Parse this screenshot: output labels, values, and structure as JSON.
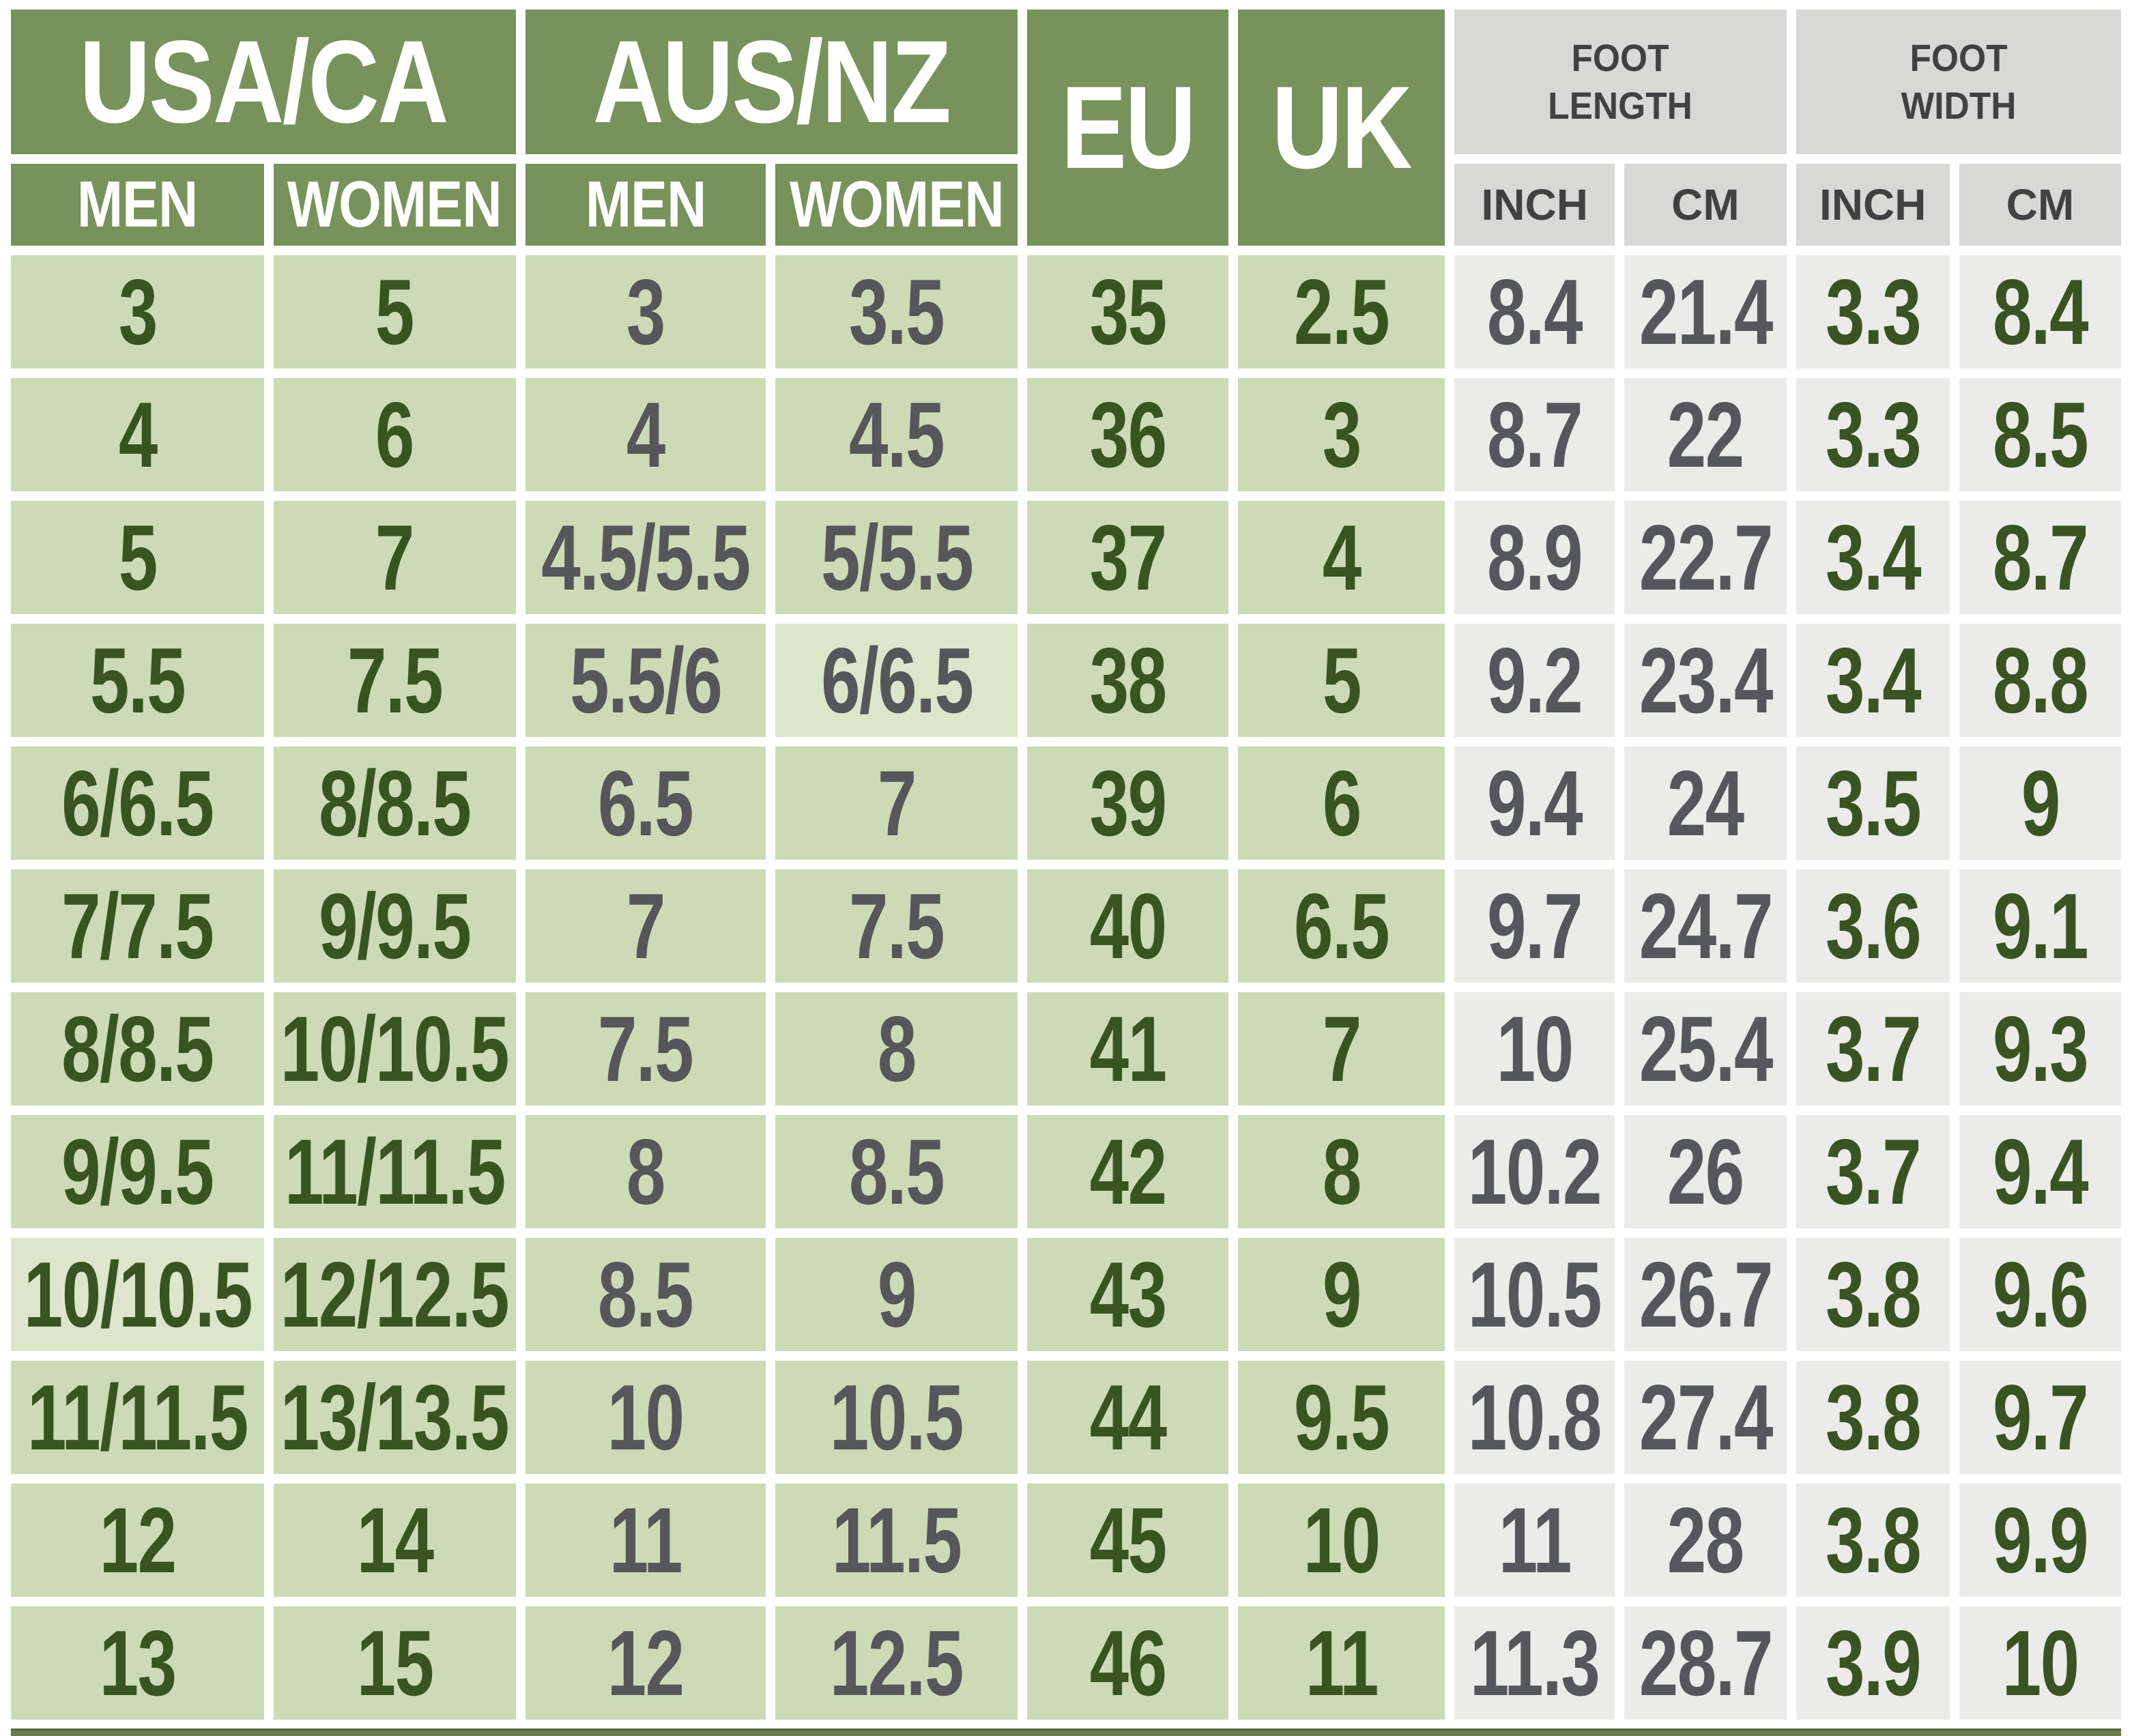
{
  "header": {
    "groups": {
      "usa_ca": "USA/CA",
      "aus_nz": "AUS/NZ",
      "eu": "EU",
      "uk": "UK",
      "foot_length": "FOOT LENGTH",
      "foot_width": "FOOT WIDTH"
    },
    "sub": {
      "men": "MEN",
      "women": "WOMEN",
      "inch": "INCH",
      "cm": "CM"
    }
  },
  "colors": {
    "header-green": "#78925B",
    "cell-green": "#CCDBB5",
    "cell-green-light": "#DCE6CB",
    "header-gray": "#D8D8D6",
    "cell-gray": "#EBEBE9",
    "text-dark-green": "#3A5322",
    "text-gray": "#55575A",
    "text-header-gray": "#414143",
    "accent-bar": "#6B7C4F",
    "background": "#FFFFFF"
  },
  "chart_data": {
    "type": "table",
    "column_groups": [
      "USA/CA",
      "USA/CA",
      "AUS/NZ",
      "AUS/NZ",
      "EU",
      "UK",
      "FOOT LENGTH",
      "FOOT LENGTH",
      "FOOT WIDTH",
      "FOOT WIDTH"
    ],
    "columns": [
      "USA/CA MEN",
      "USA/CA WOMEN",
      "AUS/NZ MEN",
      "AUS/NZ WOMEN",
      "EU",
      "UK",
      "FOOT LENGTH INCH",
      "FOOT LENGTH CM",
      "FOOT WIDTH INCH",
      "FOOT WIDTH CM"
    ],
    "rows": [
      [
        "3",
        "5",
        "3",
        "3.5",
        "35",
        "2.5",
        "8.4",
        "21.4",
        "3.3",
        "8.4"
      ],
      [
        "4",
        "6",
        "4",
        "4.5",
        "36",
        "3",
        "8.7",
        "22",
        "3.3",
        "8.5"
      ],
      [
        "5",
        "7",
        "4.5/5.5",
        "5/5.5",
        "37",
        "4",
        "8.9",
        "22.7",
        "3.4",
        "8.7"
      ],
      [
        "5.5",
        "7.5",
        "5.5/6",
        "6/6.5",
        "38",
        "5",
        "9.2",
        "23.4",
        "3.4",
        "8.8"
      ],
      [
        "6/6.5",
        "8/8.5",
        "6.5",
        "7",
        "39",
        "6",
        "9.4",
        "24",
        "3.5",
        "9"
      ],
      [
        "7/7.5",
        "9/9.5",
        "7",
        "7.5",
        "40",
        "6.5",
        "9.7",
        "24.7",
        "3.6",
        "9.1"
      ],
      [
        "8/8.5",
        "10/10.5",
        "7.5",
        "8",
        "41",
        "7",
        "10",
        "25.4",
        "3.7",
        "9.3"
      ],
      [
        "9/9.5",
        "11/11.5",
        "8",
        "8.5",
        "42",
        "8",
        "10.2",
        "26",
        "3.7",
        "9.4"
      ],
      [
        "10/10.5",
        "12/12.5",
        "8.5",
        "9",
        "43",
        "9",
        "10.5",
        "26.7",
        "3.8",
        "9.6"
      ],
      [
        "11/11.5",
        "13/13.5",
        "10",
        "10.5",
        "44",
        "9.5",
        "10.8",
        "27.4",
        "3.8",
        "9.7"
      ],
      [
        "12",
        "14",
        "11",
        "11.5",
        "45",
        "10",
        "11",
        "28",
        "3.8",
        "9.9"
      ],
      [
        "13",
        "15",
        "12",
        "12.5",
        "46",
        "11",
        "11.3",
        "28.7",
        "3.9",
        "10"
      ]
    ]
  }
}
